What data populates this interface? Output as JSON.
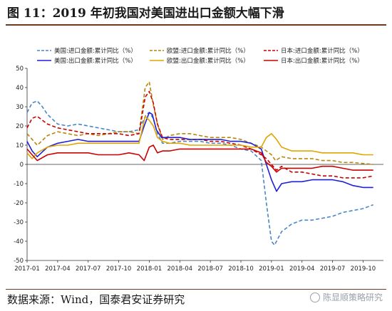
{
  "header": {
    "title": "图 11：2019 年初我国对美国进出口金额大幅下滑"
  },
  "footer": {
    "source": "数据来源：Wind，国泰君安证券研究",
    "watermark": "陈显顺策略研究"
  },
  "chart_data": {
    "type": "line",
    "xlim": [
      0,
      35
    ],
    "ylim": [
      -50,
      50
    ],
    "y_ticks": [
      -50,
      -40,
      -30,
      -20,
      -10,
      0,
      10,
      20,
      30,
      40,
      50
    ],
    "x_ticks": [
      {
        "i": 0,
        "label": "2017-01"
      },
      {
        "i": 3,
        "label": "2017-04"
      },
      {
        "i": 6,
        "label": "2017-07"
      },
      {
        "i": 9,
        "label": "2017-10"
      },
      {
        "i": 12,
        "label": "2018-01"
      },
      {
        "i": 15,
        "label": "2018-04"
      },
      {
        "i": 18,
        "label": "2018-07"
      },
      {
        "i": 21,
        "label": "2018-10"
      },
      {
        "i": 24,
        "label": "2019-01"
      },
      {
        "i": 27,
        "label": "2019-04"
      },
      {
        "i": 30,
        "label": "2019-07"
      },
      {
        "i": 33,
        "label": "2019-10"
      }
    ],
    "legend_position": "top",
    "series": [
      {
        "name": "美国:进口金额:累计同比（%）",
        "color": "#4a86c8",
        "dashed": true,
        "points": [
          [
            0,
            27
          ],
          [
            0.5,
            32
          ],
          [
            1,
            33
          ],
          [
            1.5,
            30
          ],
          [
            2,
            26
          ],
          [
            3,
            21
          ],
          [
            4,
            20
          ],
          [
            5,
            21
          ],
          [
            6,
            20
          ],
          [
            7,
            19
          ],
          [
            8,
            18
          ],
          [
            9,
            17
          ],
          [
            10,
            17
          ],
          [
            11,
            18
          ],
          [
            11.7,
            26
          ],
          [
            12,
            27
          ],
          [
            12.4,
            24
          ],
          [
            12.8,
            16
          ],
          [
            13.3,
            11
          ],
          [
            14,
            11
          ],
          [
            15,
            12
          ],
          [
            16,
            12
          ],
          [
            17,
            12
          ],
          [
            18,
            11
          ],
          [
            19,
            11
          ],
          [
            20,
            10
          ],
          [
            21,
            8
          ],
          [
            22,
            7
          ],
          [
            23,
            2
          ],
          [
            23.5,
            -20
          ],
          [
            24,
            -40
          ],
          [
            24.3,
            -42
          ],
          [
            25,
            -35
          ],
          [
            26,
            -31
          ],
          [
            27,
            -29
          ],
          [
            28,
            -29
          ],
          [
            29,
            -28
          ],
          [
            30,
            -27
          ],
          [
            31,
            -25
          ],
          [
            32,
            -24
          ],
          [
            33,
            -23
          ],
          [
            34,
            -21
          ]
        ]
      },
      {
        "name": "欧盟:进口金额:累计同比（%）",
        "color": "#b8860b",
        "dashed": true,
        "points": [
          [
            0,
            16
          ],
          [
            1,
            10
          ],
          [
            2,
            15
          ],
          [
            3,
            17
          ],
          [
            4,
            16
          ],
          [
            5,
            15
          ],
          [
            6,
            16
          ],
          [
            7,
            15
          ],
          [
            8,
            16
          ],
          [
            9,
            17
          ],
          [
            10,
            17
          ],
          [
            11,
            16
          ],
          [
            11.6,
            40
          ],
          [
            12,
            43
          ],
          [
            12.4,
            31
          ],
          [
            12.8,
            21
          ],
          [
            13.3,
            13
          ],
          [
            14,
            15
          ],
          [
            15,
            16
          ],
          [
            16,
            16
          ],
          [
            17,
            15
          ],
          [
            18,
            14
          ],
          [
            19,
            14
          ],
          [
            20,
            14
          ],
          [
            21,
            13
          ],
          [
            22,
            11
          ],
          [
            23,
            9
          ],
          [
            23.5,
            7
          ],
          [
            24,
            5
          ],
          [
            24.4,
            2
          ],
          [
            25,
            4
          ],
          [
            26,
            3
          ],
          [
            27,
            3
          ],
          [
            28,
            3
          ],
          [
            29,
            2
          ],
          [
            30,
            2
          ],
          [
            31,
            1
          ],
          [
            32,
            1
          ],
          [
            33,
            0.5
          ],
          [
            34,
            0
          ]
        ]
      },
      {
        "name": "日本:进口金额:累计同比（%）",
        "color": "#cc0000",
        "dashed": true,
        "points": [
          [
            0,
            19
          ],
          [
            0.5,
            24
          ],
          [
            1,
            25
          ],
          [
            2,
            21
          ],
          [
            3,
            19
          ],
          [
            4,
            18
          ],
          [
            5,
            17
          ],
          [
            6,
            16
          ],
          [
            7,
            16
          ],
          [
            8,
            16
          ],
          [
            9,
            16
          ],
          [
            10,
            15
          ],
          [
            11,
            16
          ],
          [
            11.6,
            35
          ],
          [
            12,
            38
          ],
          [
            12.4,
            32
          ],
          [
            12.8,
            21
          ],
          [
            13.3,
            14
          ],
          [
            14,
            13
          ],
          [
            15,
            13
          ],
          [
            16,
            13
          ],
          [
            17,
            13
          ],
          [
            18,
            12
          ],
          [
            19,
            12
          ],
          [
            20,
            11
          ],
          [
            21,
            10
          ],
          [
            22,
            8
          ],
          [
            23,
            5
          ],
          [
            23.5,
            3
          ],
          [
            24,
            0
          ],
          [
            24.5,
            -3
          ],
          [
            25,
            -1
          ],
          [
            26,
            -4
          ],
          [
            27,
            -4
          ],
          [
            28,
            -5
          ],
          [
            29,
            -6
          ],
          [
            30,
            -6
          ],
          [
            31,
            -7
          ],
          [
            32,
            -7
          ],
          [
            33,
            -7
          ],
          [
            34,
            -6
          ]
        ]
      },
      {
        "name": "美国:出口金额:累计同比（%）",
        "color": "#1f1fd6",
        "dashed": false,
        "points": [
          [
            0,
            12
          ],
          [
            0.5,
            7
          ],
          [
            1,
            4
          ],
          [
            2,
            9
          ],
          [
            3,
            11
          ],
          [
            4,
            12
          ],
          [
            5,
            13
          ],
          [
            6,
            12
          ],
          [
            7,
            12
          ],
          [
            8,
            12
          ],
          [
            9,
            12
          ],
          [
            10,
            12
          ],
          [
            11,
            12
          ],
          [
            11.5,
            20
          ],
          [
            12,
            27
          ],
          [
            12.3,
            26
          ],
          [
            12.7,
            18
          ],
          [
            13.2,
            14
          ],
          [
            14,
            14
          ],
          [
            15,
            14
          ],
          [
            16,
            13
          ],
          [
            17,
            13
          ],
          [
            18,
            13
          ],
          [
            19,
            13
          ],
          [
            20,
            12
          ],
          [
            21,
            12
          ],
          [
            22,
            11
          ],
          [
            23,
            8
          ],
          [
            23.5,
            0
          ],
          [
            24,
            -8
          ],
          [
            24.5,
            -14
          ],
          [
            25,
            -10
          ],
          [
            26,
            -9
          ],
          [
            27,
            -9
          ],
          [
            28,
            -8
          ],
          [
            29,
            -8
          ],
          [
            30,
            -8
          ],
          [
            31,
            -9
          ],
          [
            32,
            -11
          ],
          [
            33,
            -12
          ],
          [
            34,
            -12
          ]
        ]
      },
      {
        "name": "欧盟:出口金额:累计同比（%）",
        "color": "#e0a500",
        "dashed": false,
        "points": [
          [
            0,
            6
          ],
          [
            0.5,
            3
          ],
          [
            1,
            6
          ],
          [
            2,
            9
          ],
          [
            3,
            10
          ],
          [
            4,
            10
          ],
          [
            5,
            11
          ],
          [
            6,
            11
          ],
          [
            7,
            11
          ],
          [
            8,
            11
          ],
          [
            9,
            11
          ],
          [
            10,
            11
          ],
          [
            11,
            11
          ],
          [
            11.6,
            25
          ],
          [
            12,
            23
          ],
          [
            12.4,
            20
          ],
          [
            12.8,
            14
          ],
          [
            13.3,
            12
          ],
          [
            14,
            11
          ],
          [
            15,
            11
          ],
          [
            16,
            10
          ],
          [
            17,
            10
          ],
          [
            18,
            10
          ],
          [
            19,
            10
          ],
          [
            20,
            10
          ],
          [
            21,
            10
          ],
          [
            22,
            9
          ],
          [
            23,
            9
          ],
          [
            23.5,
            14
          ],
          [
            24,
            16
          ],
          [
            24.5,
            13
          ],
          [
            25,
            9
          ],
          [
            26,
            7
          ],
          [
            27,
            7
          ],
          [
            28,
            7
          ],
          [
            29,
            6
          ],
          [
            30,
            6
          ],
          [
            31,
            6
          ],
          [
            32,
            6
          ],
          [
            33,
            5
          ],
          [
            34,
            5
          ]
        ]
      },
      {
        "name": "日本:出口金额:累计同比（%）",
        "color": "#cc0000",
        "dashed": false,
        "points": [
          [
            0,
            8
          ],
          [
            0.5,
            5
          ],
          [
            1,
            2
          ],
          [
            2,
            5
          ],
          [
            3,
            6
          ],
          [
            4,
            6
          ],
          [
            5,
            6
          ],
          [
            6,
            6
          ],
          [
            7,
            5
          ],
          [
            8,
            5
          ],
          [
            9,
            5
          ],
          [
            10,
            6
          ],
          [
            11,
            5
          ],
          [
            11.5,
            2
          ],
          [
            12,
            9
          ],
          [
            12.4,
            10
          ],
          [
            12.8,
            6
          ],
          [
            13.3,
            7
          ],
          [
            14,
            7
          ],
          [
            15,
            8
          ],
          [
            16,
            8
          ],
          [
            17,
            8
          ],
          [
            18,
            8
          ],
          [
            19,
            8
          ],
          [
            20,
            8
          ],
          [
            21,
            8
          ],
          [
            22,
            8
          ],
          [
            23,
            6
          ],
          [
            23.5,
            1
          ],
          [
            24,
            -1
          ],
          [
            24.5,
            -4
          ],
          [
            25,
            -2
          ],
          [
            26,
            -2
          ],
          [
            27,
            -2
          ],
          [
            28,
            -2
          ],
          [
            29,
            -1
          ],
          [
            30,
            -1
          ],
          [
            31,
            -2
          ],
          [
            32,
            -3
          ],
          [
            33,
            -3
          ],
          [
            34,
            -3
          ]
        ]
      }
    ]
  }
}
